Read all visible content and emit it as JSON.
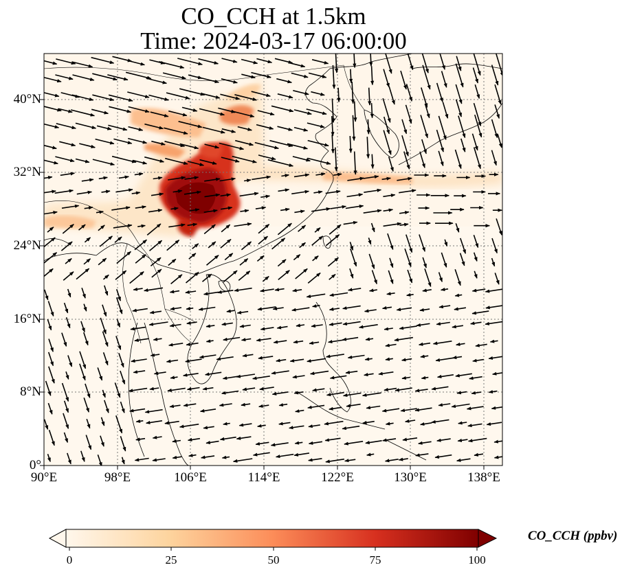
{
  "figure": {
    "title_line1": "CO_CCH at 1.5km",
    "title_line2": "Time: 2024-03-17 06:00:00"
  },
  "map": {
    "variable": "CO_CCH",
    "height": "1.5km",
    "time": "2024-03-17 06:00:00",
    "extent": {
      "lon": [
        90,
        140
      ],
      "lat": [
        0,
        45
      ]
    },
    "gridlines": true,
    "vectors": "wind arrows",
    "xticks": [
      "90°E",
      "98°E",
      "106°E",
      "114°E",
      "122°E",
      "130°E",
      "138°E"
    ],
    "xtick_values": [
      90,
      98,
      106,
      114,
      122,
      130,
      138
    ],
    "yticks": [
      "0°",
      "8°N",
      "16°N",
      "24°N",
      "32°N",
      "40°N"
    ],
    "ytick_values": [
      0,
      8,
      16,
      24,
      32,
      40
    ]
  },
  "colorbar": {
    "label": "CO_CCH (ppbv)",
    "colormap": "OrRd",
    "range": [
      0,
      100
    ],
    "extend": "both",
    "ticks": [
      "0",
      "25",
      "50",
      "75",
      "100"
    ],
    "tick_values": [
      0,
      25,
      50,
      75,
      100
    ],
    "colors": [
      "#fff7ec",
      "#fdd49e",
      "#fc8d59",
      "#d7301f",
      "#7f0000"
    ]
  }
}
